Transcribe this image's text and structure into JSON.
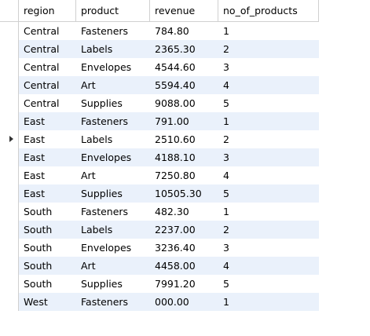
{
  "table": {
    "columns": [
      "region",
      "product",
      "revenue",
      "no_of_products"
    ],
    "selected_row": 6,
    "rows": [
      [
        "Central",
        "Fasteners",
        "784.80",
        "1"
      ],
      [
        "Central",
        "Labels",
        "2365.30",
        "2"
      ],
      [
        "Central",
        "Envelopes",
        "4544.60",
        "3"
      ],
      [
        "Central",
        "Art",
        "5594.40",
        "4"
      ],
      [
        "Central",
        "Supplies",
        "9088.00",
        "5"
      ],
      [
        "East",
        "Fasteners",
        "791.00",
        "1"
      ],
      [
        "East",
        "Labels",
        "2510.60",
        "2"
      ],
      [
        "East",
        "Envelopes",
        "4188.10",
        "3"
      ],
      [
        "East",
        "Art",
        "7250.80",
        "4"
      ],
      [
        "East",
        "Supplies",
        "10505.30",
        "5"
      ],
      [
        "South",
        "Fasteners",
        "482.30",
        "1"
      ],
      [
        "South",
        "Labels",
        "2237.00",
        "2"
      ],
      [
        "South",
        "Envelopes",
        "3236.40",
        "3"
      ],
      [
        "South",
        "Art",
        "4458.00",
        "4"
      ],
      [
        "South",
        "Supplies",
        "7991.20",
        "5"
      ],
      [
        "West",
        "Fasteners",
        "000.00",
        "1"
      ]
    ]
  },
  "colors": {
    "stripe": "#eaf1fb",
    "grid_line": "#d0d0d0"
  }
}
